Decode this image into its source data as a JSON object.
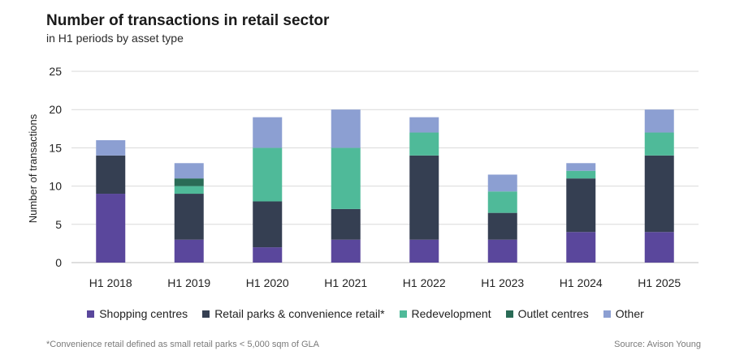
{
  "title": "Number of transactions in retail sector",
  "subtitle": "in H1 periods by asset type",
  "footnote": "*Convenience retail defined as small retail parks < 5,000 sqm of GLA",
  "source": "Source: Avison Young",
  "chart_data": {
    "type": "bar",
    "stacked": true,
    "title": "Number of transactions in retail sector",
    "subtitle": "in H1 periods by asset type",
    "xlabel": "",
    "ylabel": "Number of transactions",
    "ylim": [
      0,
      25
    ],
    "yticks": [
      0,
      5,
      10,
      15,
      20,
      25
    ],
    "grid": true,
    "legend_position": "bottom",
    "categories": [
      "H1 2018",
      "H1 2019",
      "H1 2020",
      "H1 2021",
      "H1 2022",
      "H1 2023",
      "H1 2024",
      "H1 2025"
    ],
    "series": [
      {
        "name": "Shopping centres",
        "color": "#5a479c",
        "values": [
          9,
          3,
          2,
          3,
          3,
          3,
          4,
          4
        ]
      },
      {
        "name": "Retail parks & convenience retail*",
        "color": "#353f52",
        "values": [
          5,
          6,
          6,
          4,
          11,
          3.5,
          7,
          10
        ]
      },
      {
        "name": "Redevelopment",
        "color": "#4fba99",
        "values": [
          0,
          1,
          7,
          8,
          3,
          2.8,
          1,
          3
        ]
      },
      {
        "name": "Outlet centres",
        "color": "#2a6b56",
        "values": [
          0,
          1,
          0,
          0,
          0,
          0,
          0,
          0
        ]
      },
      {
        "name": "Other",
        "color": "#8c9fd2",
        "values": [
          2,
          2,
          4,
          5,
          2,
          2.2,
          1,
          3
        ]
      }
    ]
  }
}
